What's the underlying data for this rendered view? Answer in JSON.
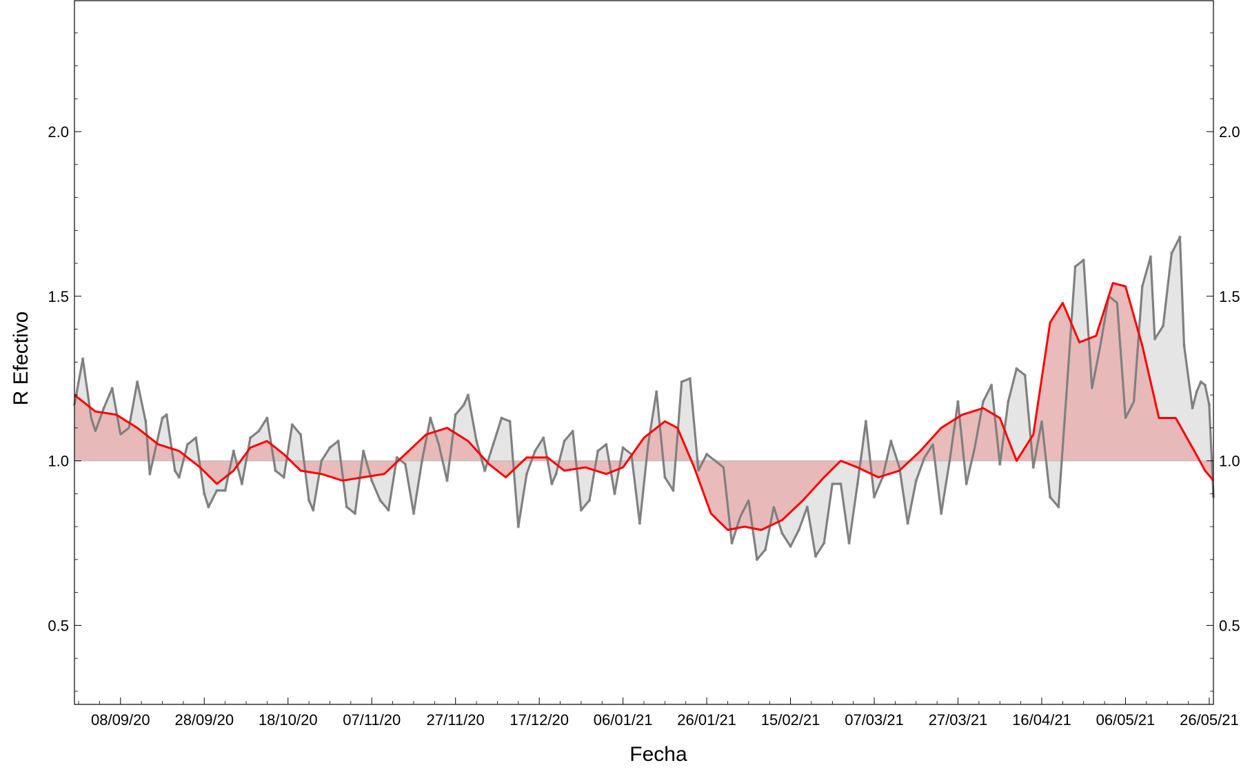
{
  "chart_data": {
    "type": "line",
    "title": "",
    "xlabel": "Fecha",
    "ylabel": "R Efectivo",
    "ylim": [
      0.26,
      2.4
    ],
    "xlim": [
      "2020-08-28",
      "2021-05-27"
    ],
    "baseline": 1.0,
    "yticks": [
      0.5,
      1.0,
      1.5,
      2.0
    ],
    "ytick_labels": [
      "0.5",
      "1.0",
      "1.5",
      "2.0"
    ],
    "xticks": [
      "2020-09-08",
      "2020-09-28",
      "2020-10-18",
      "2020-11-07",
      "2020-11-27",
      "2020-12-17",
      "2021-01-06",
      "2021-01-26",
      "2021-02-15",
      "2021-03-07",
      "2021-03-27",
      "2021-04-16",
      "2021-05-06",
      "2021-05-26"
    ],
    "xtick_labels": [
      "08/09/20",
      "28/09/20",
      "18/10/20",
      "07/11/20",
      "27/11/20",
      "17/12/20",
      "06/01/21",
      "26/01/21",
      "15/02/21",
      "07/03/21",
      "27/03/21",
      "16/04/21",
      "06/05/21",
      "26/05/21"
    ],
    "colors": {
      "smooth_line": "#ff0000",
      "smooth_fill": "#e8b4b4",
      "raw_line": "#808080",
      "raw_fill": "#e0e0e0",
      "scatter": "#d0d0d0",
      "baseline": "#c0c0c0"
    },
    "series": [
      {
        "role": "smooth",
        "points": [
          [
            "2020-08-28",
            1.2
          ],
          [
            "2020-09-02",
            1.15
          ],
          [
            "2020-09-07",
            1.14
          ],
          [
            "2020-09-12",
            1.1
          ],
          [
            "2020-09-17",
            1.05
          ],
          [
            "2020-09-22",
            1.03
          ],
          [
            "2020-09-27",
            0.98
          ],
          [
            "2020-10-01",
            0.93
          ],
          [
            "2020-10-05",
            0.97
          ],
          [
            "2020-10-09",
            1.04
          ],
          [
            "2020-10-13",
            1.06
          ],
          [
            "2020-10-17",
            1.02
          ],
          [
            "2020-10-21",
            0.97
          ],
          [
            "2020-10-26",
            0.96
          ],
          [
            "2020-10-31",
            0.94
          ],
          [
            "2020-11-05",
            0.95
          ],
          [
            "2020-11-10",
            0.96
          ],
          [
            "2020-11-15",
            1.02
          ],
          [
            "2020-11-20",
            1.08
          ],
          [
            "2020-11-25",
            1.1
          ],
          [
            "2020-11-30",
            1.06
          ],
          [
            "2020-12-05",
            0.99
          ],
          [
            "2020-12-09",
            0.95
          ],
          [
            "2020-12-14",
            1.01
          ],
          [
            "2020-12-19",
            1.01
          ],
          [
            "2020-12-23",
            0.97
          ],
          [
            "2020-12-28",
            0.98
          ],
          [
            "2021-01-02",
            0.96
          ],
          [
            "2021-01-06",
            0.98
          ],
          [
            "2021-01-11",
            1.07
          ],
          [
            "2021-01-16",
            1.12
          ],
          [
            "2021-01-19",
            1.1
          ],
          [
            "2021-01-23",
            0.98
          ],
          [
            "2021-01-27",
            0.84
          ],
          [
            "2021-01-31",
            0.79
          ],
          [
            "2021-02-04",
            0.8
          ],
          [
            "2021-02-08",
            0.79
          ],
          [
            "2021-02-13",
            0.82
          ],
          [
            "2021-02-18",
            0.88
          ],
          [
            "2021-02-23",
            0.95
          ],
          [
            "2021-02-27",
            1.0
          ],
          [
            "2021-03-03",
            0.98
          ],
          [
            "2021-03-08",
            0.95
          ],
          [
            "2021-03-13",
            0.97
          ],
          [
            "2021-03-18",
            1.03
          ],
          [
            "2021-03-23",
            1.1
          ],
          [
            "2021-03-28",
            1.14
          ],
          [
            "2021-04-02",
            1.16
          ],
          [
            "2021-04-06",
            1.13
          ],
          [
            "2021-04-10",
            1.0
          ],
          [
            "2021-04-14",
            1.08
          ],
          [
            "2021-04-18",
            1.42
          ],
          [
            "2021-04-21",
            1.48
          ],
          [
            "2021-04-25",
            1.36
          ],
          [
            "2021-04-29",
            1.38
          ],
          [
            "2021-05-03",
            1.54
          ],
          [
            "2021-05-06",
            1.53
          ],
          [
            "2021-05-10",
            1.35
          ],
          [
            "2021-05-14",
            1.13
          ],
          [
            "2021-05-18",
            1.13
          ],
          [
            "2021-05-22",
            1.04
          ],
          [
            "2021-05-25",
            0.97
          ],
          [
            "2021-05-27",
            0.94
          ]
        ]
      },
      {
        "role": "raw",
        "points": [
          [
            "2020-08-28",
            1.17
          ],
          [
            "2020-08-30",
            1.31
          ],
          [
            "2020-09-01",
            1.13
          ],
          [
            "2020-09-02",
            1.09
          ],
          [
            "2020-09-04",
            1.16
          ],
          [
            "2020-09-06",
            1.22
          ],
          [
            "2020-09-08",
            1.08
          ],
          [
            "2020-09-10",
            1.1
          ],
          [
            "2020-09-12",
            1.24
          ],
          [
            "2020-09-14",
            1.12
          ],
          [
            "2020-09-15",
            0.96
          ],
          [
            "2020-09-18",
            1.13
          ],
          [
            "2020-09-19",
            1.14
          ],
          [
            "2020-09-21",
            0.97
          ],
          [
            "2020-09-22",
            0.95
          ],
          [
            "2020-09-24",
            1.05
          ],
          [
            "2020-09-26",
            1.07
          ],
          [
            "2020-09-28",
            0.9
          ],
          [
            "2020-09-29",
            0.86
          ],
          [
            "2020-10-01",
            0.91
          ],
          [
            "2020-10-03",
            0.91
          ],
          [
            "2020-10-05",
            1.03
          ],
          [
            "2020-10-07",
            0.93
          ],
          [
            "2020-10-09",
            1.07
          ],
          [
            "2020-10-11",
            1.09
          ],
          [
            "2020-10-13",
            1.13
          ],
          [
            "2020-10-15",
            0.97
          ],
          [
            "2020-10-17",
            0.95
          ],
          [
            "2020-10-19",
            1.11
          ],
          [
            "2020-10-21",
            1.08
          ],
          [
            "2020-10-23",
            0.88
          ],
          [
            "2020-10-24",
            0.85
          ],
          [
            "2020-10-26",
            1.0
          ],
          [
            "2020-10-28",
            1.04
          ],
          [
            "2020-10-30",
            1.06
          ],
          [
            "2020-11-01",
            0.86
          ],
          [
            "2020-11-03",
            0.84
          ],
          [
            "2020-11-05",
            1.03
          ],
          [
            "2020-11-07",
            0.94
          ],
          [
            "2020-11-09",
            0.88
          ],
          [
            "2020-11-11",
            0.85
          ],
          [
            "2020-11-13",
            1.01
          ],
          [
            "2020-11-15",
            0.99
          ],
          [
            "2020-11-17",
            0.84
          ],
          [
            "2020-11-19",
            1.0
          ],
          [
            "2020-11-21",
            1.13
          ],
          [
            "2020-11-23",
            1.05
          ],
          [
            "2020-11-25",
            0.94
          ],
          [
            "2020-11-27",
            1.14
          ],
          [
            "2020-11-29",
            1.17
          ],
          [
            "2020-11-30",
            1.2
          ],
          [
            "2020-12-02",
            1.06
          ],
          [
            "2020-12-04",
            0.97
          ],
          [
            "2020-12-06",
            1.05
          ],
          [
            "2020-12-08",
            1.13
          ],
          [
            "2020-12-10",
            1.12
          ],
          [
            "2020-12-12",
            0.8
          ],
          [
            "2020-12-14",
            0.96
          ],
          [
            "2020-12-16",
            1.03
          ],
          [
            "2020-12-18",
            1.07
          ],
          [
            "2020-12-20",
            0.93
          ],
          [
            "2020-12-21",
            0.96
          ],
          [
            "2020-12-23",
            1.06
          ],
          [
            "2020-12-25",
            1.09
          ],
          [
            "2020-12-27",
            0.85
          ],
          [
            "2020-12-29",
            0.88
          ],
          [
            "2020-12-31",
            1.03
          ],
          [
            "2021-01-02",
            1.05
          ],
          [
            "2021-01-04",
            0.9
          ],
          [
            "2021-01-06",
            1.04
          ],
          [
            "2021-01-08",
            1.02
          ],
          [
            "2021-01-10",
            0.81
          ],
          [
            "2021-01-12",
            1.05
          ],
          [
            "2021-01-14",
            1.21
          ],
          [
            "2021-01-16",
            0.95
          ],
          [
            "2021-01-18",
            0.91
          ],
          [
            "2021-01-20",
            1.24
          ],
          [
            "2021-01-22",
            1.25
          ],
          [
            "2021-01-24",
            0.97
          ],
          [
            "2021-01-26",
            1.02
          ],
          [
            "2021-01-28",
            1.0
          ],
          [
            "2021-01-30",
            0.98
          ],
          [
            "2021-02-01",
            0.75
          ],
          [
            "2021-02-03",
            0.83
          ],
          [
            "2021-02-05",
            0.88
          ],
          [
            "2021-02-07",
            0.7
          ],
          [
            "2021-02-09",
            0.73
          ],
          [
            "2021-02-11",
            0.86
          ],
          [
            "2021-02-13",
            0.78
          ],
          [
            "2021-02-15",
            0.74
          ],
          [
            "2021-02-17",
            0.79
          ],
          [
            "2021-02-19",
            0.86
          ],
          [
            "2021-02-21",
            0.71
          ],
          [
            "2021-02-23",
            0.75
          ],
          [
            "2021-02-25",
            0.93
          ],
          [
            "2021-02-27",
            0.93
          ],
          [
            "2021-03-01",
            0.75
          ],
          [
            "2021-03-03",
            0.93
          ],
          [
            "2021-03-05",
            1.12
          ],
          [
            "2021-03-07",
            0.89
          ],
          [
            "2021-03-09",
            0.95
          ],
          [
            "2021-03-11",
            1.06
          ],
          [
            "2021-03-13",
            0.98
          ],
          [
            "2021-03-15",
            0.81
          ],
          [
            "2021-03-17",
            0.94
          ],
          [
            "2021-03-19",
            1.01
          ],
          [
            "2021-03-21",
            1.05
          ],
          [
            "2021-03-23",
            0.84
          ],
          [
            "2021-03-25",
            1.0
          ],
          [
            "2021-03-27",
            1.18
          ],
          [
            "2021-03-29",
            0.93
          ],
          [
            "2021-03-31",
            1.04
          ],
          [
            "2021-04-02",
            1.18
          ],
          [
            "2021-04-04",
            1.23
          ],
          [
            "2021-04-06",
            0.99
          ],
          [
            "2021-04-08",
            1.18
          ],
          [
            "2021-04-10",
            1.28
          ],
          [
            "2021-04-12",
            1.26
          ],
          [
            "2021-04-14",
            0.98
          ],
          [
            "2021-04-16",
            1.12
          ],
          [
            "2021-04-18",
            0.89
          ],
          [
            "2021-04-20",
            0.86
          ],
          [
            "2021-04-22",
            1.22
          ],
          [
            "2021-04-24",
            1.59
          ],
          [
            "2021-04-26",
            1.61
          ],
          [
            "2021-04-28",
            1.22
          ],
          [
            "2021-04-30",
            1.35
          ],
          [
            "2021-05-02",
            1.5
          ],
          [
            "2021-05-04",
            1.48
          ],
          [
            "2021-05-06",
            1.13
          ],
          [
            "2021-05-08",
            1.18
          ],
          [
            "2021-05-10",
            1.53
          ],
          [
            "2021-05-12",
            1.62
          ],
          [
            "2021-05-13",
            1.37
          ],
          [
            "2021-05-15",
            1.41
          ],
          [
            "2021-05-17",
            1.63
          ],
          [
            "2021-05-19",
            1.68
          ],
          [
            "2021-05-20",
            1.35
          ],
          [
            "2021-05-22",
            1.16
          ],
          [
            "2021-05-23",
            1.21
          ],
          [
            "2021-05-24",
            1.24
          ],
          [
            "2021-05-25",
            1.23
          ],
          [
            "2021-05-26",
            1.17
          ],
          [
            "2021-05-26",
            1.17
          ],
          [
            "2021-05-27",
            0.89
          ]
        ]
      }
    ]
  }
}
